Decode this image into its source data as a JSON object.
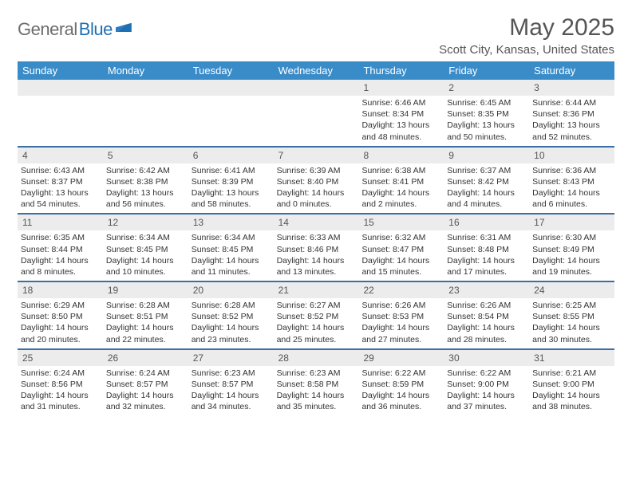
{
  "brand": {
    "part1": "General",
    "part2": "Blue"
  },
  "header": {
    "title": "May 2025",
    "location": "Scott City, Kansas, United States"
  },
  "colors": {
    "header_bg": "#3a8cc9",
    "week_border": "#3a6ea5",
    "daynum_bg": "#ececec",
    "text": "#333333",
    "muted": "#555555"
  },
  "weekdays": [
    "Sunday",
    "Monday",
    "Tuesday",
    "Wednesday",
    "Thursday",
    "Friday",
    "Saturday"
  ],
  "weeks": [
    [
      {
        "n": "",
        "sunrise": "",
        "sunset": "",
        "daylight": ""
      },
      {
        "n": "",
        "sunrise": "",
        "sunset": "",
        "daylight": ""
      },
      {
        "n": "",
        "sunrise": "",
        "sunset": "",
        "daylight": ""
      },
      {
        "n": "",
        "sunrise": "",
        "sunset": "",
        "daylight": ""
      },
      {
        "n": "1",
        "sunrise": "Sunrise: 6:46 AM",
        "sunset": "Sunset: 8:34 PM",
        "daylight": "Daylight: 13 hours and 48 minutes."
      },
      {
        "n": "2",
        "sunrise": "Sunrise: 6:45 AM",
        "sunset": "Sunset: 8:35 PM",
        "daylight": "Daylight: 13 hours and 50 minutes."
      },
      {
        "n": "3",
        "sunrise": "Sunrise: 6:44 AM",
        "sunset": "Sunset: 8:36 PM",
        "daylight": "Daylight: 13 hours and 52 minutes."
      }
    ],
    [
      {
        "n": "4",
        "sunrise": "Sunrise: 6:43 AM",
        "sunset": "Sunset: 8:37 PM",
        "daylight": "Daylight: 13 hours and 54 minutes."
      },
      {
        "n": "5",
        "sunrise": "Sunrise: 6:42 AM",
        "sunset": "Sunset: 8:38 PM",
        "daylight": "Daylight: 13 hours and 56 minutes."
      },
      {
        "n": "6",
        "sunrise": "Sunrise: 6:41 AM",
        "sunset": "Sunset: 8:39 PM",
        "daylight": "Daylight: 13 hours and 58 minutes."
      },
      {
        "n": "7",
        "sunrise": "Sunrise: 6:39 AM",
        "sunset": "Sunset: 8:40 PM",
        "daylight": "Daylight: 14 hours and 0 minutes."
      },
      {
        "n": "8",
        "sunrise": "Sunrise: 6:38 AM",
        "sunset": "Sunset: 8:41 PM",
        "daylight": "Daylight: 14 hours and 2 minutes."
      },
      {
        "n": "9",
        "sunrise": "Sunrise: 6:37 AM",
        "sunset": "Sunset: 8:42 PM",
        "daylight": "Daylight: 14 hours and 4 minutes."
      },
      {
        "n": "10",
        "sunrise": "Sunrise: 6:36 AM",
        "sunset": "Sunset: 8:43 PM",
        "daylight": "Daylight: 14 hours and 6 minutes."
      }
    ],
    [
      {
        "n": "11",
        "sunrise": "Sunrise: 6:35 AM",
        "sunset": "Sunset: 8:44 PM",
        "daylight": "Daylight: 14 hours and 8 minutes."
      },
      {
        "n": "12",
        "sunrise": "Sunrise: 6:34 AM",
        "sunset": "Sunset: 8:45 PM",
        "daylight": "Daylight: 14 hours and 10 minutes."
      },
      {
        "n": "13",
        "sunrise": "Sunrise: 6:34 AM",
        "sunset": "Sunset: 8:45 PM",
        "daylight": "Daylight: 14 hours and 11 minutes."
      },
      {
        "n": "14",
        "sunrise": "Sunrise: 6:33 AM",
        "sunset": "Sunset: 8:46 PM",
        "daylight": "Daylight: 14 hours and 13 minutes."
      },
      {
        "n": "15",
        "sunrise": "Sunrise: 6:32 AM",
        "sunset": "Sunset: 8:47 PM",
        "daylight": "Daylight: 14 hours and 15 minutes."
      },
      {
        "n": "16",
        "sunrise": "Sunrise: 6:31 AM",
        "sunset": "Sunset: 8:48 PM",
        "daylight": "Daylight: 14 hours and 17 minutes."
      },
      {
        "n": "17",
        "sunrise": "Sunrise: 6:30 AM",
        "sunset": "Sunset: 8:49 PM",
        "daylight": "Daylight: 14 hours and 19 minutes."
      }
    ],
    [
      {
        "n": "18",
        "sunrise": "Sunrise: 6:29 AM",
        "sunset": "Sunset: 8:50 PM",
        "daylight": "Daylight: 14 hours and 20 minutes."
      },
      {
        "n": "19",
        "sunrise": "Sunrise: 6:28 AM",
        "sunset": "Sunset: 8:51 PM",
        "daylight": "Daylight: 14 hours and 22 minutes."
      },
      {
        "n": "20",
        "sunrise": "Sunrise: 6:28 AM",
        "sunset": "Sunset: 8:52 PM",
        "daylight": "Daylight: 14 hours and 23 minutes."
      },
      {
        "n": "21",
        "sunrise": "Sunrise: 6:27 AM",
        "sunset": "Sunset: 8:52 PM",
        "daylight": "Daylight: 14 hours and 25 minutes."
      },
      {
        "n": "22",
        "sunrise": "Sunrise: 6:26 AM",
        "sunset": "Sunset: 8:53 PM",
        "daylight": "Daylight: 14 hours and 27 minutes."
      },
      {
        "n": "23",
        "sunrise": "Sunrise: 6:26 AM",
        "sunset": "Sunset: 8:54 PM",
        "daylight": "Daylight: 14 hours and 28 minutes."
      },
      {
        "n": "24",
        "sunrise": "Sunrise: 6:25 AM",
        "sunset": "Sunset: 8:55 PM",
        "daylight": "Daylight: 14 hours and 30 minutes."
      }
    ],
    [
      {
        "n": "25",
        "sunrise": "Sunrise: 6:24 AM",
        "sunset": "Sunset: 8:56 PM",
        "daylight": "Daylight: 14 hours and 31 minutes."
      },
      {
        "n": "26",
        "sunrise": "Sunrise: 6:24 AM",
        "sunset": "Sunset: 8:57 PM",
        "daylight": "Daylight: 14 hours and 32 minutes."
      },
      {
        "n": "27",
        "sunrise": "Sunrise: 6:23 AM",
        "sunset": "Sunset: 8:57 PM",
        "daylight": "Daylight: 14 hours and 34 minutes."
      },
      {
        "n": "28",
        "sunrise": "Sunrise: 6:23 AM",
        "sunset": "Sunset: 8:58 PM",
        "daylight": "Daylight: 14 hours and 35 minutes."
      },
      {
        "n": "29",
        "sunrise": "Sunrise: 6:22 AM",
        "sunset": "Sunset: 8:59 PM",
        "daylight": "Daylight: 14 hours and 36 minutes."
      },
      {
        "n": "30",
        "sunrise": "Sunrise: 6:22 AM",
        "sunset": "Sunset: 9:00 PM",
        "daylight": "Daylight: 14 hours and 37 minutes."
      },
      {
        "n": "31",
        "sunrise": "Sunrise: 6:21 AM",
        "sunset": "Sunset: 9:00 PM",
        "daylight": "Daylight: 14 hours and 38 minutes."
      }
    ]
  ]
}
